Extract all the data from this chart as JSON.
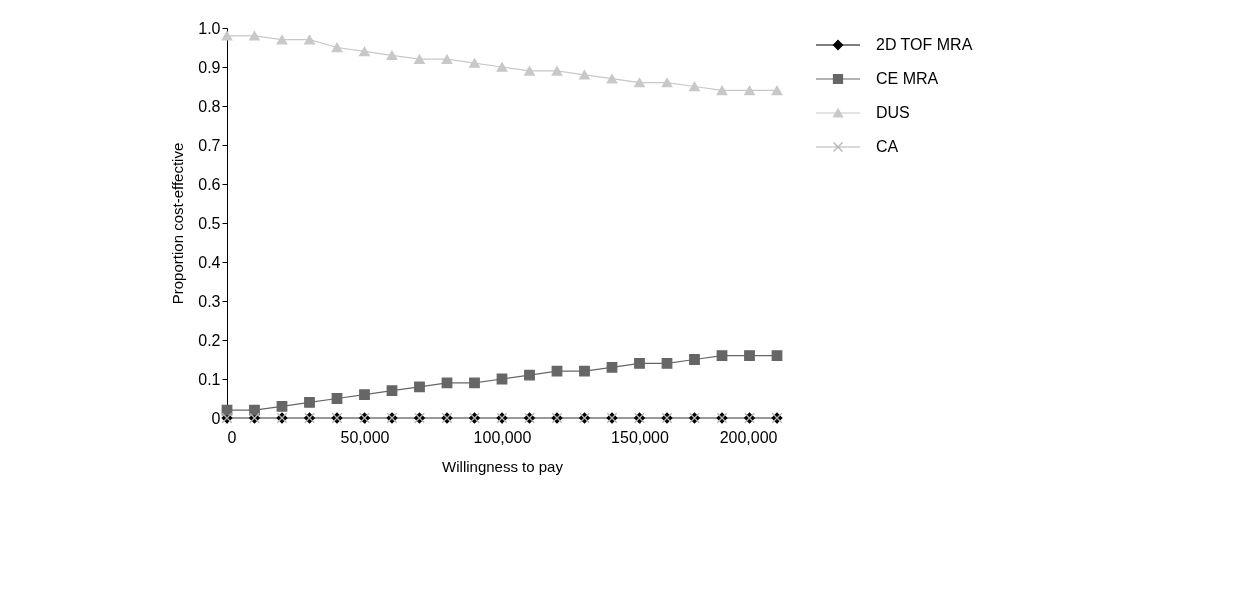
{
  "chart_data": {
    "type": "line",
    "xlabel": "Willingness to pay",
    "ylabel": "Proportion cost-effective",
    "x": [
      0,
      10000,
      20000,
      30000,
      40000,
      50000,
      60000,
      70000,
      80000,
      90000,
      100000,
      110000,
      120000,
      130000,
      140000,
      150000,
      160000,
      170000,
      180000,
      190000,
      200000
    ],
    "series": [
      {
        "name": "2D TOF MRA",
        "color": "#000000",
        "marker": "diamond",
        "values": [
          0,
          0,
          0,
          0,
          0,
          0,
          0,
          0,
          0,
          0,
          0,
          0,
          0,
          0,
          0,
          0,
          0,
          0,
          0,
          0,
          0
        ]
      },
      {
        "name": "CE MRA",
        "color": "#666666",
        "marker": "square",
        "values": [
          0.02,
          0.02,
          0.03,
          0.04,
          0.05,
          0.06,
          0.07,
          0.08,
          0.09,
          0.09,
          0.1,
          0.11,
          0.12,
          0.12,
          0.13,
          0.14,
          0.14,
          0.15,
          0.16,
          0.16,
          0.16
        ]
      },
      {
        "name": "DUS",
        "color": "#c8c8c8",
        "marker": "triangle",
        "values": [
          0.98,
          0.98,
          0.97,
          0.97,
          0.95,
          0.94,
          0.93,
          0.92,
          0.92,
          0.91,
          0.9,
          0.89,
          0.89,
          0.88,
          0.87,
          0.86,
          0.86,
          0.85,
          0.84,
          0.84,
          0.84
        ]
      },
      {
        "name": "CA",
        "color": "#b4b4b4",
        "marker": "cross",
        "values": [
          0,
          0,
          0,
          0,
          0,
          0,
          0,
          0,
          0,
          0,
          0,
          0,
          0,
          0,
          0,
          0,
          0,
          0,
          0,
          0,
          0
        ]
      }
    ],
    "xlim": [
      0,
      200000
    ],
    "xticks": [
      0,
      {
        "value": 50000,
        "label": "50,000"
      },
      {
        "value": 100000,
        "label": "100,000"
      },
      {
        "value": 150000,
        "label": "150,000"
      },
      {
        "value": 200000,
        "label": "200,000"
      }
    ],
    "ylim": [
      0,
      1
    ],
    "yticks": [
      0,
      0.1,
      0.2,
      0.3,
      0.4,
      0.5,
      0.6,
      0.7,
      0.8,
      0.9,
      {
        "value": 1.0,
        "label": "1.0"
      }
    ],
    "legend": "top right",
    "grid": false,
    "line_style": "solid"
  }
}
